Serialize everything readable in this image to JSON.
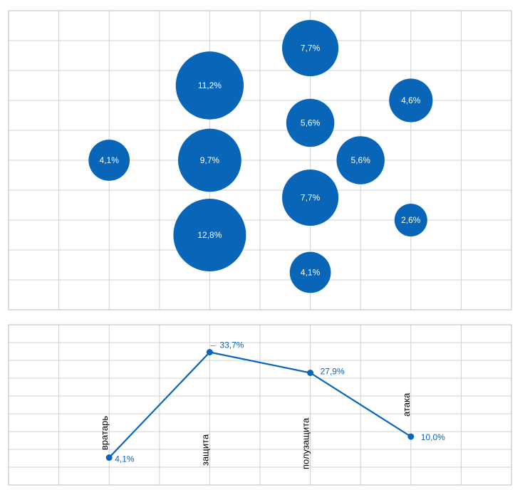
{
  "chart_data": [
    {
      "type": "bubble",
      "title": "",
      "grid": true,
      "xlim": [
        0,
        10
      ],
      "ylim": [
        0,
        10
      ],
      "points": [
        {
          "x": 2,
          "y": 5,
          "value": 4.1,
          "label": "4,1%"
        },
        {
          "x": 4,
          "y": 7.5,
          "value": 11.2,
          "label": "11,2%"
        },
        {
          "x": 4,
          "y": 5,
          "value": 9.7,
          "label": "9,7%"
        },
        {
          "x": 4,
          "y": 2.5,
          "value": 12.8,
          "label": "12,8%"
        },
        {
          "x": 6,
          "y": 8.75,
          "value": 7.7,
          "label": "7,7%"
        },
        {
          "x": 6,
          "y": 6.25,
          "value": 5.6,
          "label": "5,6%"
        },
        {
          "x": 6,
          "y": 3.75,
          "value": 7.7,
          "label": "7,7%"
        },
        {
          "x": 6,
          "y": 1.25,
          "value": 4.1,
          "label": "4,1%"
        },
        {
          "x": 7,
          "y": 5,
          "value": 5.6,
          "label": "5,6%"
        },
        {
          "x": 8,
          "y": 7,
          "value": 4.6,
          "label": "4,6%"
        },
        {
          "x": 8,
          "y": 3,
          "value": 2.6,
          "label": "2,6%"
        }
      ]
    },
    {
      "type": "line",
      "title": "",
      "grid": true,
      "categories": [
        "вратарь",
        "защита",
        "полузащита",
        "атака"
      ],
      "values": [
        4.1,
        33.7,
        27.9,
        10.0
      ],
      "value_labels": [
        "4,1%",
        "33,7%",
        "27,9%",
        "10,0%"
      ],
      "ylim": [
        0,
        40
      ]
    }
  ],
  "colors": {
    "series": "#0865b8",
    "grid": "#d0d0d0"
  }
}
